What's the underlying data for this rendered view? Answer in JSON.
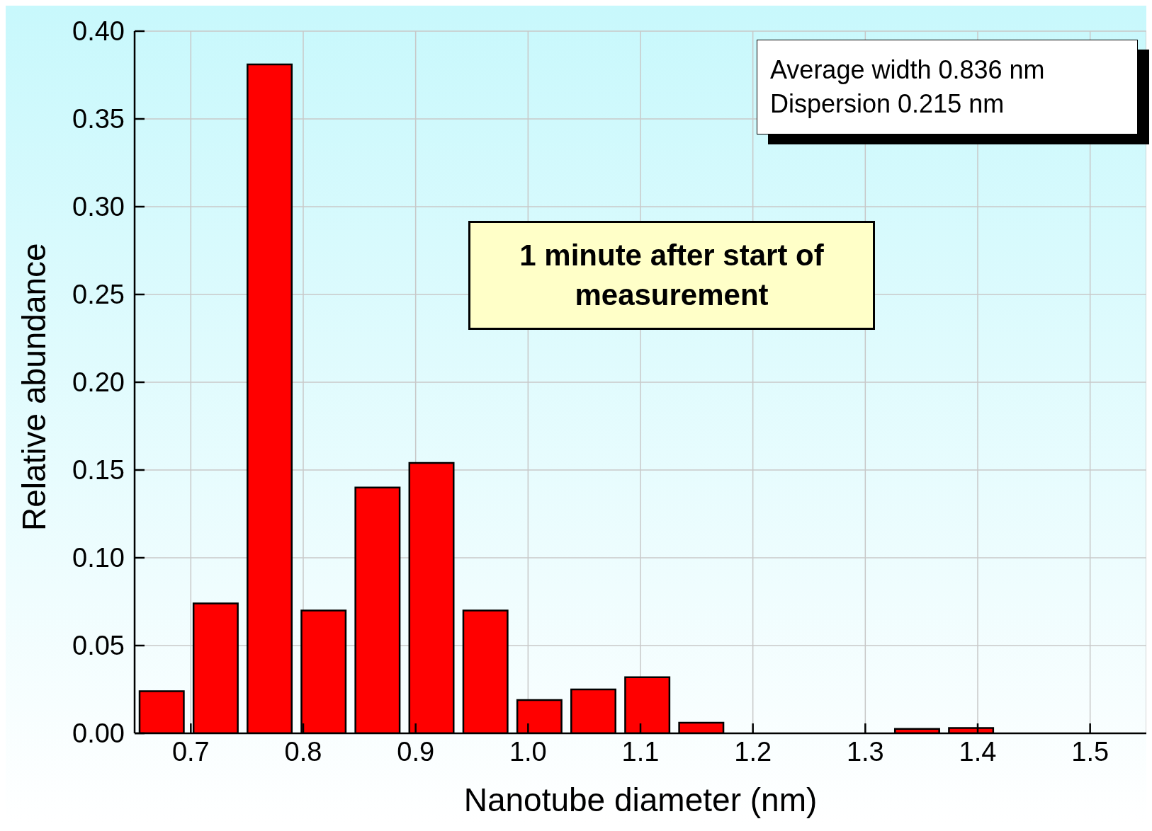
{
  "chart_data": {
    "type": "histogram",
    "xlabel": "Nanotube diameter (nm)",
    "ylabel": "Relative abundance",
    "bins": [
      0.65,
      0.698,
      0.746,
      0.794,
      0.842,
      0.89,
      0.938,
      0.986,
      1.034,
      1.082,
      1.13,
      1.178,
      1.226,
      1.274,
      1.322,
      1.37,
      1.418
    ],
    "values": [
      0.024,
      0.074,
      0.381,
      0.07,
      0.14,
      0.154,
      0.07,
      0.019,
      0.025,
      0.032,
      0.006,
      0,
      0,
      0,
      0.0025,
      0.003
    ],
    "color": "#ff0000",
    "xlim": [
      0.65,
      1.55
    ],
    "xticks": [
      0.7,
      0.8,
      0.9,
      {
        "value": 1,
        "label": "1.0"
      },
      1.1,
      1.2,
      1.3,
      1.4,
      1.5
    ],
    "ylim": [
      0,
      0.4
    ],
    "yticks": [
      {
        "value": 0,
        "label": "0.00"
      },
      {
        "value": 0.05,
        "label": "0.05"
      },
      {
        "value": 0.1,
        "label": "0.10"
      },
      {
        "value": 0.15,
        "label": "0.15"
      },
      {
        "value": 0.2,
        "label": "0.20"
      },
      {
        "value": 0.25,
        "label": "0.25"
      },
      {
        "value": 0.3,
        "label": "0.30"
      },
      {
        "value": 0.35,
        "label": "0.35"
      },
      {
        "value": 0.4,
        "label": "0.40"
      }
    ],
    "grid": true,
    "annotations": [
      "Average width 0.836 nm",
      "Dispersion 0.215 nm",
      "1 minute after start of measurement"
    ]
  }
}
